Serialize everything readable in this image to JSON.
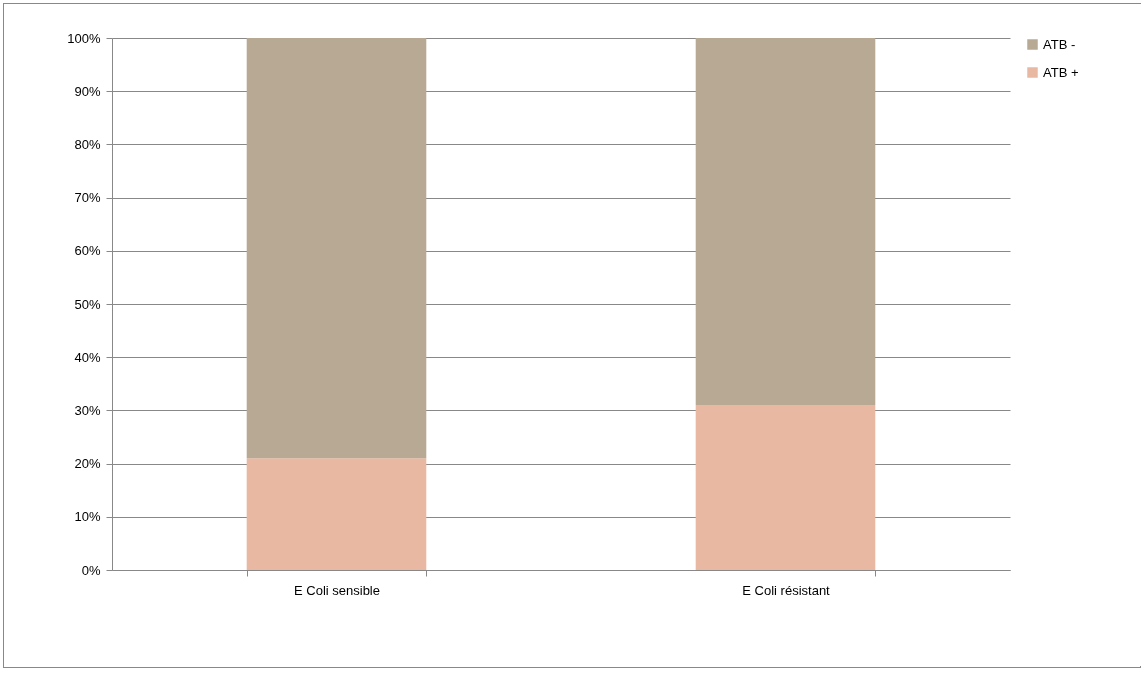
{
  "chart_data": {
    "type": "bar",
    "stacked": true,
    "categories": [
      "E Coli sensible",
      "E Coli résistant"
    ],
    "series": [
      {
        "name": "ATB +",
        "color": "#e9b8a2",
        "values": [
          21,
          31
        ]
      },
      {
        "name": "ATB -",
        "color": "#b8a994",
        "values": [
          79,
          69
        ]
      }
    ],
    "ylim": [
      0,
      100
    ],
    "yticks": [
      {
        "value": 0,
        "label": "0%"
      },
      {
        "value": 10,
        "label": "10%"
      },
      {
        "value": 20,
        "label": "20%"
      },
      {
        "value": 30,
        "label": "30%"
      },
      {
        "value": 40,
        "label": "40%"
      },
      {
        "value": 50,
        "label": "50%"
      },
      {
        "value": 60,
        "label": "60%"
      },
      {
        "value": 70,
        "label": "70%"
      },
      {
        "value": 80,
        "label": "80%"
      },
      {
        "value": 90,
        "label": "90%"
      },
      {
        "value": 100,
        "label": "100%"
      }
    ],
    "grid": "y",
    "legend": "right"
  }
}
